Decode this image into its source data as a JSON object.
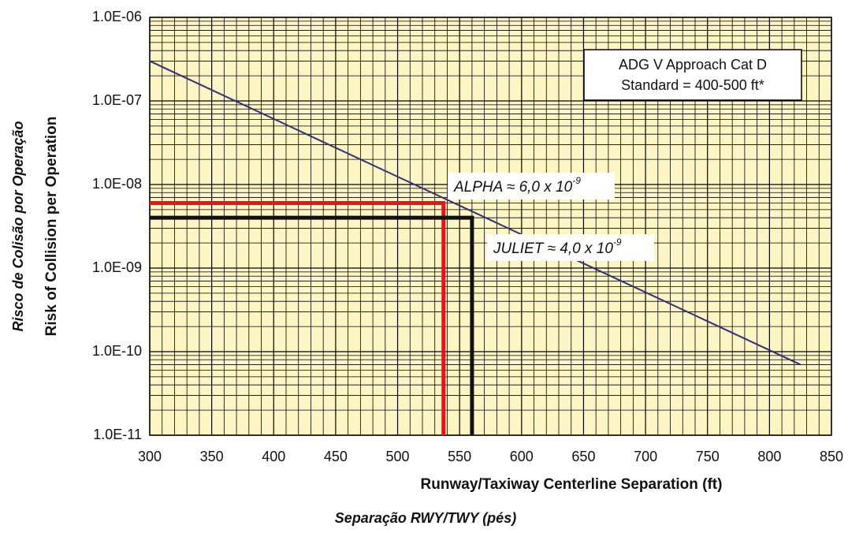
{
  "chart_data": {
    "type": "line",
    "x_label": "Runway/Taxiway Centerline Separation (ft)",
    "x_label_2": "Separação RWY/TWY (pés)",
    "y_label": "Risk of Collision per Operation",
    "y_label_2": "Risco de Colisão por Operação",
    "x": [
      300,
      825
    ],
    "series": [
      {
        "name": "ADG V Approach Cat D",
        "color": "#2e3178",
        "values": [
          3e-07,
          7e-11
        ]
      }
    ],
    "legend_lines": [
      "ADG V Approach Cat D",
      "Standard = 400-500 ft*"
    ],
    "xlim": [
      300,
      850
    ],
    "xticks": [
      300,
      350,
      400,
      450,
      500,
      550,
      600,
      650,
      700,
      750,
      800,
      850
    ],
    "ylim": [
      1e-11,
      1e-06
    ],
    "yticks": [
      {
        "value": 1e-11,
        "label": "1.0E-11"
      },
      {
        "value": 1e-10,
        "label": "1.0E-10"
      },
      {
        "value": 1e-09,
        "label": "1.0E-09"
      },
      {
        "value": 1e-08,
        "label": "1.0E-08"
      },
      {
        "value": 1e-07,
        "label": "1.0E-07"
      },
      {
        "value": 1e-06,
        "label": "1.0E-06"
      }
    ],
    "ylog": true,
    "grid": true,
    "minor_grid": true,
    "annotations": [
      {
        "label": "ALPHA ≈ 6,0 x 10",
        "exponent": "-9",
        "x": 537,
        "y": 6e-09,
        "color": "#e8141b"
      },
      {
        "label": "JULIET ≈ 4,0 x 10",
        "exponent": "-9",
        "x": 560,
        "y": 4e-09,
        "color": "#111111"
      }
    ]
  }
}
